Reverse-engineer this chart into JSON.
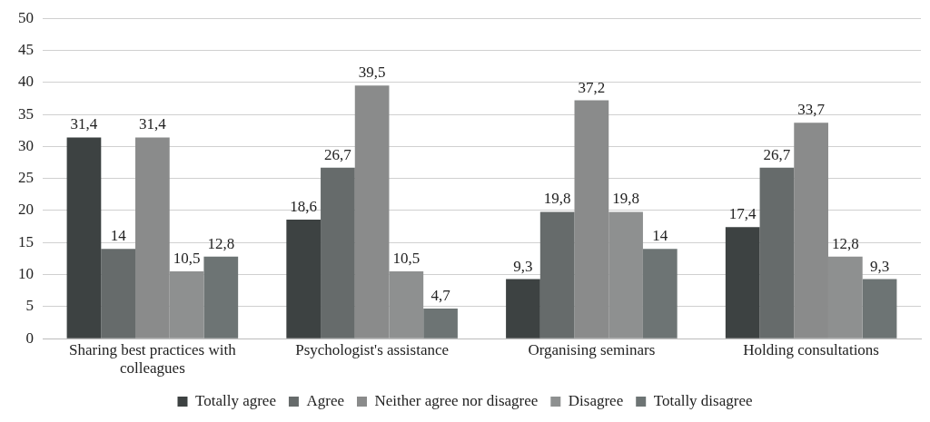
{
  "chart_data": {
    "type": "bar",
    "categories": [
      "Sharing best practices with colleagues",
      "Psychologist's assistance",
      "Organising seminars",
      "Holding consultations"
    ],
    "series": [
      {
        "name": "Totally agree",
        "color": "#3d4242",
        "values": [
          31.4,
          18.6,
          9.3,
          17.4
        ],
        "value_labels": [
          "31,4",
          "18,6",
          "9,3",
          "17,4"
        ]
      },
      {
        "name": "Agree",
        "color": "#666b6b",
        "values": [
          14,
          26.7,
          19.8,
          26.7
        ],
        "value_labels": [
          "14",
          "26,7",
          "19,8",
          "26,7"
        ]
      },
      {
        "name": "Neither agree nor disagree",
        "color": "#8a8b8b",
        "values": [
          31.4,
          39.5,
          37.2,
          33.7
        ],
        "value_labels": [
          "31,4",
          "39,5",
          "37,2",
          "33,7"
        ]
      },
      {
        "name": "Disagree",
        "color": "#8e9090",
        "values": [
          10.5,
          10.5,
          19.8,
          12.8
        ],
        "value_labels": [
          "10,5",
          "10,5",
          "19,8",
          "12,8"
        ]
      },
      {
        "name": "Totally disagree",
        "color": "#6d7474",
        "values": [
          12.8,
          4.7,
          14,
          9.3
        ],
        "value_labels": [
          "12,8",
          "4,7",
          "14",
          "9,3"
        ]
      }
    ],
    "ylim": [
      0,
      50
    ],
    "yticks": [
      0,
      5,
      10,
      15,
      20,
      25,
      30,
      35,
      40,
      45,
      50
    ],
    "grid": "y",
    "legend": "bottom"
  }
}
